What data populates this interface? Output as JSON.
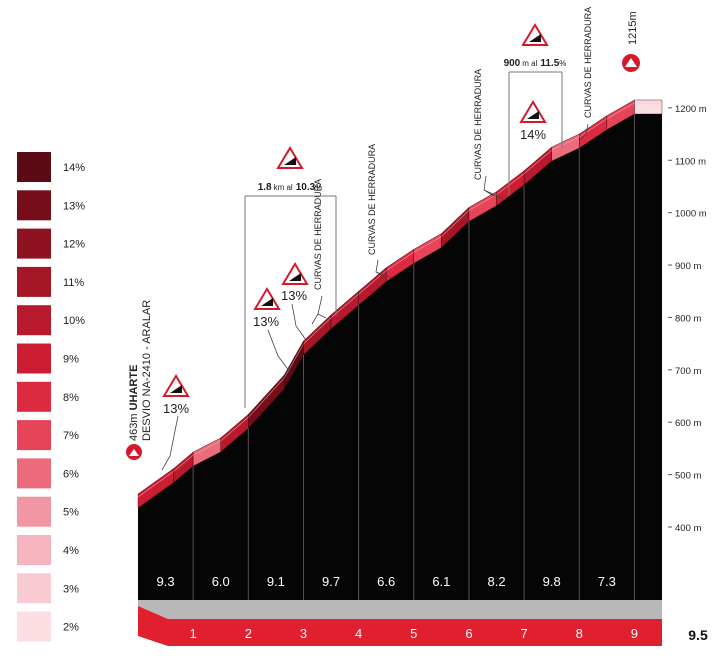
{
  "chart_data": {
    "type": "area",
    "start_label": {
      "altitude": "463m",
      "name": "UHARTE",
      "sub": "DESVIO NA-2410 - ARALAR"
    },
    "summit_label": "1215m",
    "distance_total": "9.5",
    "km_ticks": [
      "1",
      "2",
      "3",
      "4",
      "5",
      "6",
      "7",
      "8",
      "9"
    ],
    "altitude_ticks": [
      "400 m",
      "500 m",
      "600 m",
      "700 m",
      "800 m",
      "900 m",
      "1000 m",
      "1100 m",
      "1200 m"
    ],
    "altitude_tick_values": [
      400,
      500,
      600,
      700,
      800,
      900,
      1000,
      1100,
      1200
    ],
    "ylim": [
      340,
      1250
    ],
    "xlim": [
      0,
      9.5
    ],
    "gradient_legend": [
      "14%",
      "13%",
      "12%",
      "11%",
      "10%",
      "9%",
      "8%",
      "7%",
      "6%",
      "5%",
      "4%",
      "3%",
      "2%"
    ],
    "gradient_colors": [
      "#5c0a14",
      "#760e1a",
      "#8e1220",
      "#a51626",
      "#b8192c",
      "#cc1d33",
      "#dc2a40",
      "#e64458",
      "#ec6b7c",
      "#f196a3",
      "#f5b4be",
      "#f8cbd2",
      "#fbdde2"
    ],
    "profile": {
      "x": [
        0,
        0.65,
        1,
        1.5,
        2,
        2.65,
        3,
        3.5,
        4,
        4.5,
        5,
        5.5,
        6,
        6.5,
        7,
        7.5,
        8,
        8.5,
        9,
        9.5
      ],
      "y": [
        463,
        512,
        543,
        570,
        615,
        690,
        755,
        805,
        850,
        895,
        930,
        960,
        1010,
        1040,
        1080,
        1125,
        1150,
        1185,
        1215,
        1215
      ]
    },
    "km_gradients": [
      "9.3",
      "6.0",
      "9.1",
      "9.7",
      "6.6",
      "6.1",
      "8.2",
      "9.8",
      "7.3"
    ],
    "annotations": {
      "climb1_pct": "13%",
      "climb2_pct": "13%",
      "climb3_pct": "13%",
      "climb4_pct": "14%",
      "bracket1_len": "1.8",
      "bracket1_unit": "km al",
      "bracket1_pct": "10.3",
      "bracket1_pct_unit": "%",
      "bracket2_len": "900",
      "bracket2_unit": "m al",
      "bracket2_pct": "11.5",
      "bracket2_pct_unit": "%",
      "hairpins": "CURVAS DE HERRADURA"
    },
    "accent": "#e0202e"
  }
}
